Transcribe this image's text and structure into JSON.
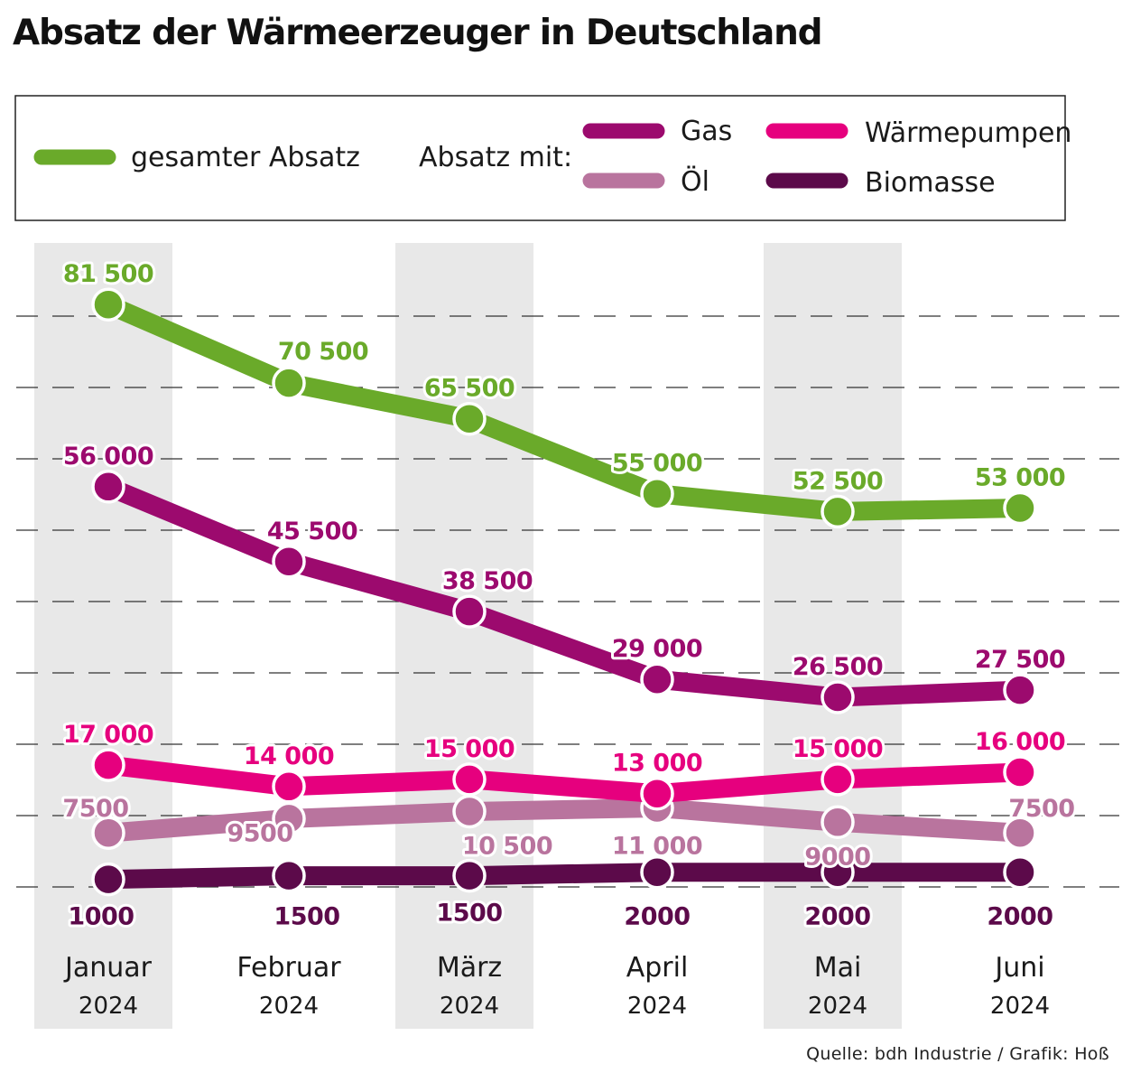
{
  "title": "Absatz der Wärmeerzeuger in Deutschland",
  "source": "Quelle: bdh Industrie / Grafik: Hoß",
  "legend": {
    "total_label": "gesamter Absatz",
    "group_label": "Absatz mit:"
  },
  "colors": {
    "total": "#6aaa2a",
    "gas": "#9c0a6e",
    "heatpump": "#e6007e",
    "oil": "#b9749e",
    "biomass": "#5c0a4a",
    "band": "#e8e8e8",
    "grid": "#333333"
  },
  "chart_data": {
    "type": "line",
    "title": "Absatz der Wärmeerzeuger in Deutschland",
    "categories": [
      {
        "month": "Januar",
        "year": "2024"
      },
      {
        "month": "Februar",
        "year": "2024"
      },
      {
        "month": "März",
        "year": "2024"
      },
      {
        "month": "April",
        "year": "2024"
      },
      {
        "month": "Mai",
        "year": "2024"
      },
      {
        "month": "Juni",
        "year": "2024"
      }
    ],
    "series": [
      {
        "key": "total",
        "name": "gesamter Absatz",
        "color": "#6aaa2a",
        "values": [
          81500,
          70500,
          65500,
          55000,
          52500,
          53000
        ],
        "labels": [
          "81 500",
          "70 500",
          "65 500",
          "55 000",
          "52 500",
          "53 000"
        ]
      },
      {
        "key": "gas",
        "name": "Gas",
        "color": "#9c0a6e",
        "values": [
          56000,
          45500,
          38500,
          29000,
          26500,
          27500
        ],
        "labels": [
          "56 000",
          "45 500",
          "38 500",
          "29 000",
          "26 500",
          "27 500"
        ]
      },
      {
        "key": "heatpump",
        "name": "Wärmepumpen",
        "color": "#e6007e",
        "values": [
          17000,
          14000,
          15000,
          13000,
          15000,
          16000
        ],
        "labels": [
          "17 000",
          "14 000",
          "15 000",
          "13 000",
          "15 000",
          "16 000"
        ]
      },
      {
        "key": "oil",
        "name": "Öl",
        "color": "#b9749e",
        "values": [
          7500,
          9500,
          10500,
          11000,
          9000,
          7500
        ],
        "labels": [
          "7500",
          "9500",
          "10 500",
          "11 000",
          "9000",
          "7500"
        ]
      },
      {
        "key": "biomass",
        "name": "Biomasse",
        "color": "#5c0a4a",
        "values": [
          1000,
          1500,
          1500,
          2000,
          2000,
          2000
        ],
        "labels": [
          "1000",
          "1500",
          "1500",
          "2000",
          "2000",
          "2000"
        ]
      }
    ],
    "grid": "dashed horizontal",
    "legend_position": "top"
  }
}
